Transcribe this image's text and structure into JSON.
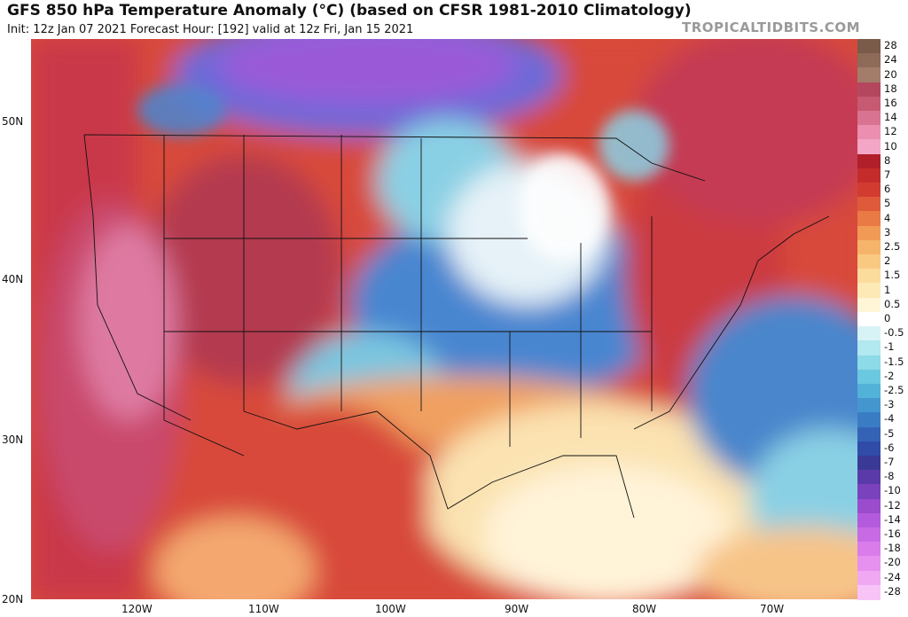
{
  "header": {
    "title": "GFS 850 hPa Temperature Anomaly (°C) (based on CFSR 1981-2010 Climatology)",
    "subtitle": "Init: 12z Jan 07 2021   Forecast Hour: [192]   valid at 12z Fri, Jan 15 2021",
    "brand": "TROPICALTIDBITS.COM"
  },
  "axes": {
    "lat_labels": [
      "50N",
      "40N",
      "30N",
      "20N"
    ],
    "lon_labels": [
      "120W",
      "110W",
      "100W",
      "90W",
      "80W",
      "70W"
    ]
  },
  "colorbar": {
    "labels": [
      "28",
      "24",
      "20",
      "18",
      "16",
      "14",
      "12",
      "10",
      "8",
      "7",
      "6",
      "5",
      "4",
      "3",
      "2.5",
      "2",
      "1.5",
      "1",
      "0.5",
      "0",
      "-0.5",
      "-1",
      "-1.5",
      "-2",
      "-2.5",
      "-3",
      "-4",
      "-5",
      "-6",
      "-7",
      "-8",
      "-10",
      "-12",
      "-14",
      "-16",
      "-18",
      "-20",
      "-24",
      "-28"
    ],
    "colors": [
      "#7a5a48",
      "#8e6a58",
      "#a37d6a",
      "#b4475e",
      "#c65a72",
      "#d97392",
      "#eb8eb0",
      "#f3a6c6",
      "#b01f2a",
      "#c42c2c",
      "#d23c30",
      "#de5a3a",
      "#e97a45",
      "#f19a56",
      "#f6b46a",
      "#f9c982",
      "#fbdc9c",
      "#fde9b6",
      "#fff6d8",
      "#ffffff",
      "#d8f3f6",
      "#b2e8ef",
      "#8ddae8",
      "#6ac8e0",
      "#52b2d8",
      "#4496cf",
      "#3a7cc4",
      "#3463b6",
      "#304ca8",
      "#3a3a96",
      "#5a3aa8",
      "#7a42bc",
      "#9a4ccc",
      "#b45adc",
      "#c86ae4",
      "#da7cea",
      "#e690ef",
      "#f0a8f3",
      "#f8c4f8"
    ]
  }
}
